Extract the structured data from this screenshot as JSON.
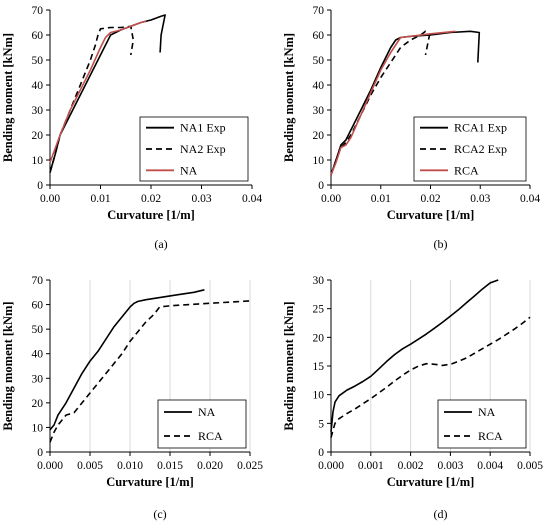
{
  "chart_data": [
    {
      "type": "line",
      "caption": "(a)",
      "xlabel": "Curvature [1/m]",
      "ylabel": "Bending moment [kNm]",
      "xlim": [
        0,
        0.04
      ],
      "ylim": [
        0,
        70
      ],
      "xticks": [
        "0.00",
        "0.01",
        "0.02",
        "0.03",
        "0.04"
      ],
      "yticks": [
        "0",
        "10",
        "20",
        "30",
        "40",
        "50",
        "60",
        "70"
      ],
      "grid": "none",
      "legend": "bottom-right",
      "series": [
        {
          "name": "NA1 Exp",
          "color": "#000000",
          "style": "solid",
          "x": [
            0,
            0.001,
            0.002,
            0.004,
            0.006,
            0.008,
            0.01,
            0.012,
            0.014,
            0.016,
            0.018,
            0.02,
            0.022,
            0.0228,
            0.022,
            0.0218
          ],
          "y": [
            5,
            12,
            20,
            28,
            36,
            44,
            52,
            60,
            62,
            63.5,
            65,
            66,
            67.5,
            68,
            60,
            53
          ]
        },
        {
          "name": "NA2 Exp",
          "color": "#000000",
          "style": "dashed",
          "x": [
            0,
            0.001,
            0.002,
            0.004,
            0.006,
            0.008,
            0.009,
            0.0095,
            0.01,
            0.012,
            0.014,
            0.016,
            0.0165,
            0.016
          ],
          "y": [
            5,
            12,
            20,
            30,
            40,
            50,
            56,
            60,
            62.5,
            63,
            63,
            63.5,
            58,
            52
          ]
        },
        {
          "name": "NA",
          "color": "#c0504d",
          "style": "solid",
          "x": [
            0,
            0.002,
            0.004,
            0.006,
            0.008,
            0.01,
            0.011,
            0.012,
            0.014,
            0.016,
            0.018,
            0.019
          ],
          "y": [
            9,
            20,
            30,
            38,
            46,
            55,
            59,
            61,
            62,
            63.5,
            65,
            65.5
          ]
        }
      ]
    },
    {
      "type": "line",
      "caption": "(b)",
      "xlabel": "Curvature [1/m]",
      "ylabel": "Bending moment [kNm]",
      "xlim": [
        0,
        0.04
      ],
      "ylim": [
        0,
        70
      ],
      "xticks": [
        "0.00",
        "0.01",
        "0.02",
        "0.03",
        "0.04"
      ],
      "yticks": [
        "0",
        "10",
        "20",
        "30",
        "40",
        "50",
        "60",
        "70"
      ],
      "grid": "none",
      "legend": "bottom-right",
      "series": [
        {
          "name": "RCA1 Exp",
          "color": "#000000",
          "style": "solid",
          "x": [
            0,
            0.001,
            0.002,
            0.003,
            0.004,
            0.006,
            0.008,
            0.01,
            0.012,
            0.013,
            0.014,
            0.016,
            0.02,
            0.024,
            0.028,
            0.0298,
            0.0295
          ],
          "y": [
            4,
            10,
            16,
            18,
            22,
            30,
            38,
            47,
            55,
            58,
            59,
            59.5,
            60,
            61,
            61.5,
            61,
            49
          ]
        },
        {
          "name": "RCA2 Exp",
          "color": "#000000",
          "style": "dashed",
          "x": [
            0,
            0.001,
            0.002,
            0.003,
            0.004,
            0.006,
            0.008,
            0.01,
            0.012,
            0.014,
            0.016,
            0.018,
            0.019,
            0.0198,
            0.019
          ],
          "y": [
            4,
            10,
            15,
            17,
            20,
            28,
            36,
            43,
            49,
            55,
            58,
            60,
            61.5,
            60,
            52
          ]
        },
        {
          "name": "RCA",
          "color": "#c0504d",
          "style": "solid",
          "x": [
            0,
            0.001,
            0.002,
            0.003,
            0.004,
            0.006,
            0.008,
            0.01,
            0.012,
            0.014,
            0.016,
            0.02,
            0.025
          ],
          "y": [
            4,
            9,
            15,
            16,
            19,
            28,
            37,
            46,
            53,
            59,
            59.5,
            60.5,
            61.5
          ]
        }
      ]
    },
    {
      "type": "line",
      "caption": "(c)",
      "xlabel": "Curvature [1/m]",
      "ylabel": "Bending moment [kNm]",
      "xlim": [
        0,
        0.025
      ],
      "ylim": [
        0,
        70
      ],
      "xticks": [
        "0.000",
        "0.005",
        "0.010",
        "0.015",
        "0.020",
        "0.025"
      ],
      "yticks": [
        "0",
        "10",
        "20",
        "30",
        "40",
        "50",
        "60",
        "70"
      ],
      "grid": "vertical",
      "legend": "bottom-right",
      "series": [
        {
          "name": "NA",
          "color": "#000000",
          "style": "solid",
          "x": [
            0,
            0.0005,
            0.001,
            0.002,
            0.003,
            0.004,
            0.005,
            0.006,
            0.007,
            0.008,
            0.009,
            0.01,
            0.0105,
            0.011,
            0.012,
            0.014,
            0.016,
            0.018,
            0.0193
          ],
          "y": [
            9,
            11,
            15,
            20,
            26,
            32,
            37,
            41,
            46,
            51,
            55,
            59,
            60.5,
            61.3,
            62,
            63,
            64,
            65,
            66
          ]
        },
        {
          "name": "RCA",
          "color": "#000000",
          "style": "dashed",
          "x": [
            0,
            0.0005,
            0.001,
            0.0015,
            0.002,
            0.0025,
            0.003,
            0.004,
            0.005,
            0.006,
            0.007,
            0.008,
            0.009,
            0.01,
            0.011,
            0.012,
            0.013,
            0.0137,
            0.015,
            0.02,
            0.025
          ],
          "y": [
            4,
            8,
            11,
            13,
            15,
            15.5,
            16,
            20,
            24,
            28,
            32,
            36,
            40,
            45,
            49,
            53,
            56,
            59,
            59.5,
            60.5,
            61.5
          ]
        }
      ]
    },
    {
      "type": "line",
      "caption": "(d)",
      "xlabel": "Curvature [1/m]",
      "ylabel": "Bending moment [kNm]",
      "xlim": [
        0,
        0.005
      ],
      "ylim": [
        0,
        30
      ],
      "xticks": [
        "0.000",
        "0.001",
        "0.002",
        "0.003",
        "0.004",
        "0.005"
      ],
      "yticks": [
        "0",
        "5",
        "10",
        "15",
        "20",
        "25",
        "30"
      ],
      "grid": "vertical",
      "legend": "bottom-right",
      "series": [
        {
          "name": "NA",
          "color": "#000000",
          "style": "solid",
          "x": [
            0,
            5e-05,
            0.0001,
            0.0002,
            0.0004,
            0.0006,
            0.0008,
            0.001,
            0.0012,
            0.0014,
            0.0016,
            0.0018,
            0.002,
            0.0022,
            0.0024,
            0.0026,
            0.0028,
            0.003,
            0.0032,
            0.0034,
            0.0036,
            0.0038,
            0.004,
            0.0042
          ],
          "y": [
            3.5,
            7,
            8.7,
            9.8,
            10.8,
            11.5,
            12.3,
            13.2,
            14.5,
            15.8,
            17,
            18,
            18.8,
            19.7,
            20.6,
            21.6,
            22.6,
            23.7,
            24.8,
            26,
            27.2,
            28.4,
            29.5,
            30
          ]
        },
        {
          "name": "RCA",
          "color": "#000000",
          "style": "dashed",
          "x": [
            0,
            5e-05,
            0.0001,
            0.0002,
            0.0004,
            0.0006,
            0.0008,
            0.001,
            0.0012,
            0.0014,
            0.0016,
            0.0018,
            0.002,
            0.0022,
            0.0024,
            0.0026,
            0.0028,
            0.003,
            0.0032,
            0.0034,
            0.0036,
            0.0038,
            0.004,
            0.0042,
            0.0044,
            0.0046,
            0.0048,
            0.005
          ],
          "y": [
            2.5,
            3.8,
            5,
            5.8,
            6.7,
            7.5,
            8.4,
            9.3,
            10.3,
            11.3,
            12.4,
            13.4,
            14.3,
            15,
            15.4,
            15.3,
            15.1,
            15.3,
            15.8,
            16.4,
            17.2,
            18,
            18.8,
            19.6,
            20.5,
            21.4,
            22.4,
            23.5
          ]
        }
      ]
    }
  ]
}
